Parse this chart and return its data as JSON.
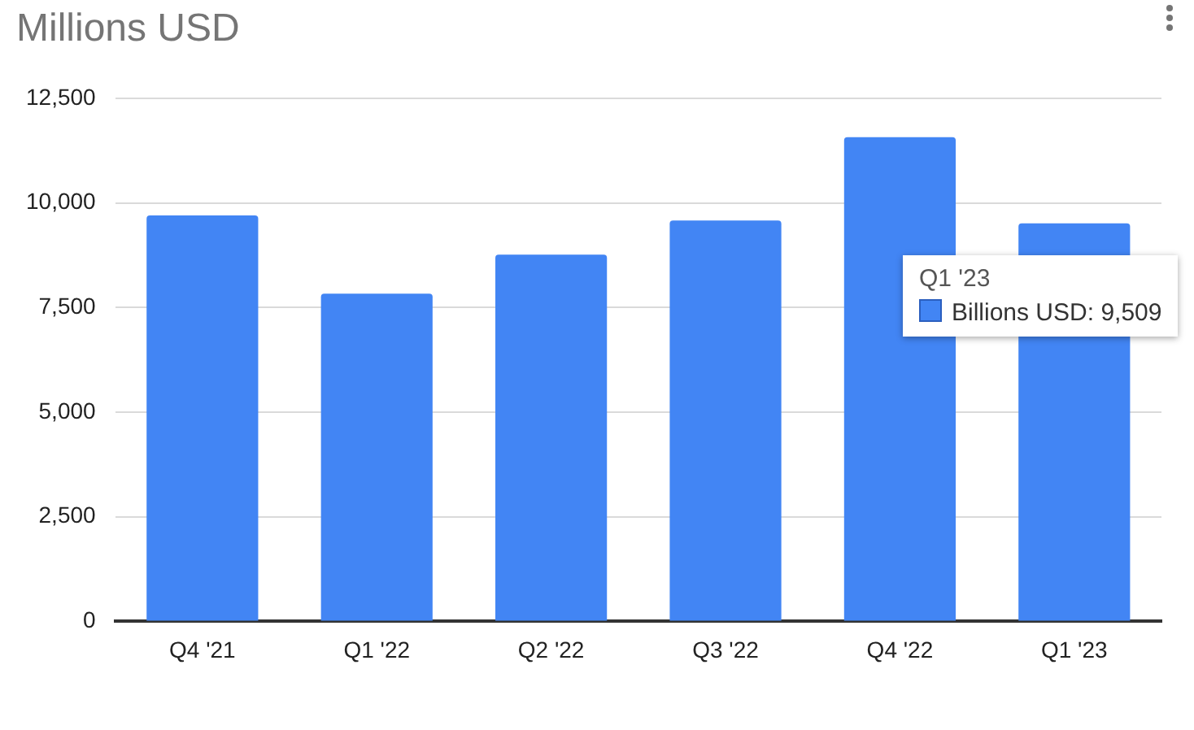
{
  "chart_data": {
    "type": "bar",
    "title": "Millions USD",
    "categories": [
      "Q4 '21",
      "Q1 '22",
      "Q2 '22",
      "Q3 '22",
      "Q4 '22",
      "Q1 '23"
    ],
    "series": [
      {
        "color": "#4285f4",
        "values": [
          9700,
          7830,
          8760,
          9580,
          11570,
          9510
        ]
      }
    ],
    "annotations": [
      "Q1 '23",
      "Billions USD: 9,509"
    ],
    "ylim": [
      0,
      12500
    ],
    "yticks": [
      0,
      {
        "value": 2500,
        "label": "2,500"
      },
      {
        "value": 5000,
        "label": "5,000"
      },
      {
        "value": 7500,
        "label": "7,500"
      },
      {
        "value": 10000,
        "label": "10,000"
      },
      {
        "value": 12500,
        "label": "12,500"
      }
    ],
    "grid": "y",
    "legend": false
  }
}
